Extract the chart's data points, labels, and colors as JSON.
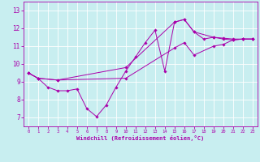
{
  "xlabel": "Windchill (Refroidissement éolien,°C)",
  "background_color": "#c8eef0",
  "line_color": "#aa00aa",
  "grid_color": "#ffffff",
  "spine_color": "#aa00aa",
  "xlim": [
    -0.5,
    23.5
  ],
  "ylim": [
    6.5,
    13.5
  ],
  "xticks": [
    0,
    1,
    2,
    3,
    4,
    5,
    6,
    7,
    8,
    9,
    10,
    11,
    12,
    13,
    14,
    15,
    16,
    17,
    18,
    19,
    20,
    21,
    22,
    23
  ],
  "yticks": [
    7,
    8,
    9,
    10,
    11,
    12,
    13
  ],
  "line1_x": [
    0,
    1,
    2,
    3,
    4,
    5,
    6,
    7,
    8,
    9,
    10,
    11,
    12,
    13,
    14,
    15,
    16,
    17,
    18,
    19,
    20,
    21,
    22,
    23
  ],
  "line1_y": [
    9.5,
    9.2,
    8.7,
    8.5,
    8.5,
    8.6,
    7.5,
    7.05,
    7.7,
    8.7,
    9.6,
    10.4,
    11.2,
    11.9,
    9.6,
    12.35,
    12.5,
    11.8,
    11.4,
    11.5,
    11.4,
    11.35,
    11.4,
    11.4
  ],
  "line2_x": [
    0,
    1,
    3,
    10,
    15,
    16,
    17,
    19,
    20,
    21,
    22,
    23
  ],
  "line2_y": [
    9.5,
    9.2,
    9.1,
    9.8,
    12.35,
    12.5,
    11.8,
    11.5,
    11.45,
    11.4,
    11.4,
    11.4
  ],
  "line3_x": [
    0,
    1,
    3,
    10,
    15,
    16,
    17,
    19,
    20,
    21,
    22,
    23
  ],
  "line3_y": [
    9.5,
    9.2,
    9.1,
    9.2,
    10.9,
    11.2,
    10.5,
    11.0,
    11.1,
    11.35,
    11.4,
    11.4
  ]
}
